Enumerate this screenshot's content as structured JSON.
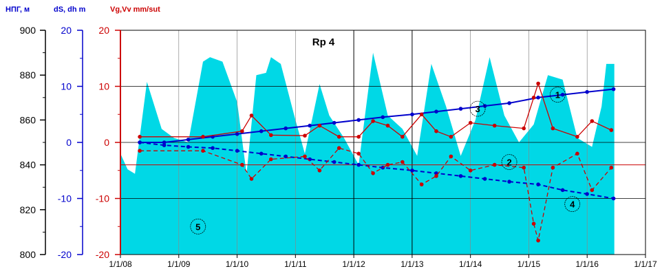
{
  "chart_data": {
    "type": "line",
    "title": "Rp 4",
    "axis_labels": {
      "hpg": "НПГ, м",
      "ds": "dS, dh m",
      "vg": "Vg,Vv mm/sut"
    },
    "axes": {
      "hpg": {
        "ticks": [
          "800",
          "820",
          "840",
          "860",
          "880",
          "900"
        ],
        "range": [
          800,
          900
        ],
        "color": "#000000"
      },
      "ds": {
        "ticks": [
          "-20",
          "-10",
          "0",
          "10",
          "20"
        ],
        "range": [
          -20,
          20
        ],
        "color": "#0000cc"
      },
      "vg": {
        "ticks": [
          "-20",
          "-10",
          "0",
          "10",
          "20"
        ],
        "range": [
          -20,
          20
        ],
        "color": "#cc0000"
      }
    },
    "x_tick_labels": [
      "1/1/08",
      "1/1/09",
      "1/1/10",
      "1/1/11",
      "1/1/12",
      "1/1/13",
      "1/1/14",
      "1/1/15",
      "1/1/16",
      "1/1/17"
    ],
    "x_range": [
      "2008-01-01",
      "2017-01-01"
    ],
    "grid": true,
    "colors": {
      "level_fill": "#00d8e6",
      "blue": "#0000cc",
      "red": "#cc0000"
    },
    "series": [
      {
        "id": "5",
        "axis": "hpg",
        "style": "area",
        "points": [
          [
            "2008-01-01",
            845
          ],
          [
            "2008-02-15",
            838
          ],
          [
            "2008-04-01",
            836
          ],
          [
            "2008-06-15",
            877
          ],
          [
            "2008-09-15",
            856
          ],
          [
            "2008-12-01",
            852
          ],
          [
            "2009-03-01",
            850
          ],
          [
            "2009-06-01",
            886
          ],
          [
            "2009-07-15",
            888
          ],
          [
            "2009-10-01",
            886
          ],
          [
            "2010-01-01",
            868
          ],
          [
            "2010-03-01",
            836
          ],
          [
            "2010-05-01",
            880
          ],
          [
            "2010-07-01",
            881
          ],
          [
            "2010-08-01",
            888
          ],
          [
            "2010-10-01",
            885
          ],
          [
            "2011-01-01",
            860
          ],
          [
            "2011-03-01",
            845
          ],
          [
            "2011-06-01",
            876
          ],
          [
            "2011-08-01",
            862
          ],
          [
            "2011-11-01",
            852
          ],
          [
            "2012-02-01",
            840
          ],
          [
            "2012-05-01",
            890
          ],
          [
            "2012-08-01",
            862
          ],
          [
            "2012-11-01",
            856
          ],
          [
            "2013-02-01",
            844
          ],
          [
            "2013-05-01",
            885
          ],
          [
            "2013-08-01",
            866
          ],
          [
            "2013-11-01",
            844
          ],
          [
            "2014-02-01",
            860
          ],
          [
            "2014-05-01",
            888
          ],
          [
            "2014-08-01",
            862
          ],
          [
            "2014-11-01",
            850
          ],
          [
            "2015-02-01",
            858
          ],
          [
            "2015-05-01",
            880
          ],
          [
            "2015-08-01",
            878
          ],
          [
            "2015-11-01",
            852
          ],
          [
            "2016-02-01",
            848
          ],
          [
            "2016-04-01",
            866
          ],
          [
            "2016-05-01",
            885
          ],
          [
            "2016-06-20",
            885
          ]
        ]
      },
      {
        "id": "1",
        "axis": "ds",
        "style": "solid",
        "color": "#0000cc",
        "points": [
          [
            "2008-05-01",
            0
          ],
          [
            "2008-10-01",
            0
          ],
          [
            "2009-03-01",
            0.5
          ],
          [
            "2009-08-01",
            1
          ],
          [
            "2010-01-01",
            1.5
          ],
          [
            "2010-06-01",
            2
          ],
          [
            "2010-11-01",
            2.5
          ],
          [
            "2011-04-01",
            3
          ],
          [
            "2011-09-01",
            3.5
          ],
          [
            "2012-02-01",
            4
          ],
          [
            "2012-07-01",
            4.5
          ],
          [
            "2013-01-01",
            5
          ],
          [
            "2013-06-01",
            5.5
          ],
          [
            "2013-11-01",
            6
          ],
          [
            "2014-04-01",
            6.5
          ],
          [
            "2014-09-01",
            7
          ],
          [
            "2015-03-01",
            8
          ],
          [
            "2015-08-01",
            8.5
          ],
          [
            "2016-01-01",
            9
          ],
          [
            "2016-06-15",
            9.5
          ]
        ]
      },
      {
        "id": "4",
        "axis": "ds",
        "style": "dashed",
        "color": "#0000cc",
        "points": [
          [
            "2008-05-01",
            0
          ],
          [
            "2008-10-01",
            -0.5
          ],
          [
            "2009-03-01",
            -0.8
          ],
          [
            "2009-08-01",
            -1
          ],
          [
            "2010-01-01",
            -1.5
          ],
          [
            "2010-06-01",
            -2
          ],
          [
            "2010-11-01",
            -2.5
          ],
          [
            "2011-04-01",
            -3
          ],
          [
            "2011-09-01",
            -3.5
          ],
          [
            "2012-02-01",
            -4
          ],
          [
            "2012-07-01",
            -4.5
          ],
          [
            "2013-01-01",
            -5
          ],
          [
            "2013-06-01",
            -5.5
          ],
          [
            "2013-11-01",
            -6
          ],
          [
            "2014-04-01",
            -6.5
          ],
          [
            "2014-09-01",
            -7
          ],
          [
            "2015-03-01",
            -7.5
          ],
          [
            "2015-08-01",
            -8.5
          ],
          [
            "2016-01-01",
            -9.2
          ],
          [
            "2016-06-15",
            -10
          ]
        ]
      },
      {
        "id": "3",
        "axis": "vg",
        "style": "solid",
        "color": "#cc0000",
        "points": [
          [
            "2008-05-01",
            1
          ],
          [
            "2009-06-01",
            1
          ],
          [
            "2010-02-01",
            2
          ],
          [
            "2010-04-01",
            4.8
          ],
          [
            "2010-08-01",
            1.3
          ],
          [
            "2011-03-01",
            1.2
          ],
          [
            "2011-06-01",
            3
          ],
          [
            "2011-10-01",
            1
          ],
          [
            "2012-02-01",
            1
          ],
          [
            "2012-05-01",
            3.8
          ],
          [
            "2012-08-01",
            3
          ],
          [
            "2012-11-01",
            1
          ],
          [
            "2013-03-01",
            5
          ],
          [
            "2013-06-01",
            2
          ],
          [
            "2013-09-01",
            1
          ],
          [
            "2014-01-01",
            3.5
          ],
          [
            "2014-06-01",
            3
          ],
          [
            "2014-12-01",
            2.5
          ],
          [
            "2015-02-01",
            8
          ],
          [
            "2015-03-01",
            10.5
          ],
          [
            "2015-06-01",
            2.5
          ],
          [
            "2015-11-01",
            1
          ],
          [
            "2016-02-01",
            3.8
          ],
          [
            "2016-06-01",
            2.2
          ]
        ]
      },
      {
        "id": "2",
        "axis": "vg",
        "style": "dashed",
        "color": "#cc0000",
        "points": [
          [
            "2008-05-01",
            -1.5
          ],
          [
            "2009-06-01",
            -1.5
          ],
          [
            "2010-02-01",
            -4
          ],
          [
            "2010-04-01",
            -6.5
          ],
          [
            "2010-08-01",
            -3
          ],
          [
            "2011-03-01",
            -2.5
          ],
          [
            "2011-06-01",
            -5
          ],
          [
            "2011-10-01",
            -1
          ],
          [
            "2012-02-01",
            -2
          ],
          [
            "2012-05-01",
            -5.5
          ],
          [
            "2012-08-01",
            -4
          ],
          [
            "2012-11-01",
            -3.5
          ],
          [
            "2013-03-01",
            -7.5
          ],
          [
            "2013-06-01",
            -6
          ],
          [
            "2013-09-01",
            -2.5
          ],
          [
            "2014-01-01",
            -5
          ],
          [
            "2014-06-01",
            -4
          ],
          [
            "2014-12-01",
            -4.5
          ],
          [
            "2015-02-01",
            -14.5
          ],
          [
            "2015-03-01",
            -17.5
          ],
          [
            "2015-06-01",
            -4.5
          ],
          [
            "2015-11-01",
            -2
          ],
          [
            "2016-02-01",
            -8.5
          ],
          [
            "2016-06-01",
            -4.5
          ]
        ]
      }
    ],
    "markers": [
      {
        "label": "1",
        "at": [
          "2015-07-01",
          8.5
        ],
        "axis": "vg"
      },
      {
        "label": "2",
        "at": [
          "2014-09-01",
          -3.5
        ],
        "axis": "vg"
      },
      {
        "label": "3",
        "at": [
          "2014-02-15",
          6
        ],
        "axis": "vg"
      },
      {
        "label": "4",
        "at": [
          "2015-10-01",
          -11
        ],
        "axis": "vg"
      },
      {
        "label": "5",
        "at": [
          "2009-05-01",
          -15
        ],
        "axis": "vg"
      }
    ]
  }
}
